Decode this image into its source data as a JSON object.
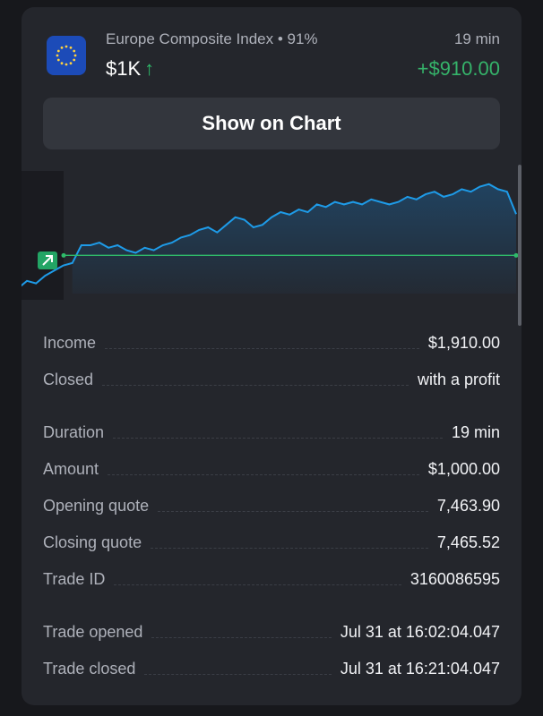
{
  "header": {
    "asset_name": "Europe Composite Index • 91%",
    "amount": "$1K",
    "direction_icon": "arrow-up-icon",
    "duration": "19 min",
    "profit": "+$910.00",
    "flag_icon": "eu-flag-icon"
  },
  "show_chart_label": "Show on Chart",
  "colors": {
    "profit_green": "#35b36a",
    "line_blue": "#1e9be8",
    "card_bg": "#24262c"
  },
  "chart_data": {
    "type": "line",
    "series": [
      {
        "values": [
          7462.6,
          7462.9,
          7462.8,
          7463.1,
          7463.3,
          7463.5,
          7463.6,
          7464.3,
          7464.3,
          7464.4,
          7464.2,
          7464.3,
          7464.1,
          7464.0,
          7464.2,
          7464.1,
          7464.3,
          7464.4,
          7464.6,
          7464.7,
          7464.9,
          7465.0,
          7464.8,
          7465.1,
          7465.4,
          7465.3,
          7465.0,
          7465.1,
          7465.4,
          7465.6,
          7465.5,
          7465.7,
          7465.6,
          7465.9,
          7465.8,
          7466.0,
          7465.9,
          7466.0,
          7465.9,
          7466.1,
          7466.0,
          7465.9,
          7466.0,
          7466.2,
          7466.1,
          7466.3,
          7466.4,
          7466.2,
          7466.3,
          7466.5,
          7466.4,
          7466.6,
          7466.7,
          7466.5,
          7466.4,
          7465.52
        ]
      }
    ],
    "opening_quote": 7463.9,
    "closing_quote": 7465.52
  },
  "details": {
    "income_label": "Income",
    "income_value": "$1,910.00",
    "closed_label": "Closed",
    "closed_value": "with a profit",
    "duration_label": "Duration",
    "duration_value": "19 min",
    "amount_label": "Amount",
    "amount_value": "$1,000.00",
    "opening_label": "Opening quote",
    "opening_value": "7,463.90",
    "closing_label": "Closing quote",
    "closing_value": "7,465.52",
    "tradeid_label": "Trade ID",
    "tradeid_value": "3160086595",
    "opened_label": "Trade opened",
    "opened_value": "Jul 31 at 16:02:04.047",
    "closedtime_label": "Trade closed",
    "closedtime_value": "Jul 31 at 16:21:04.047"
  }
}
